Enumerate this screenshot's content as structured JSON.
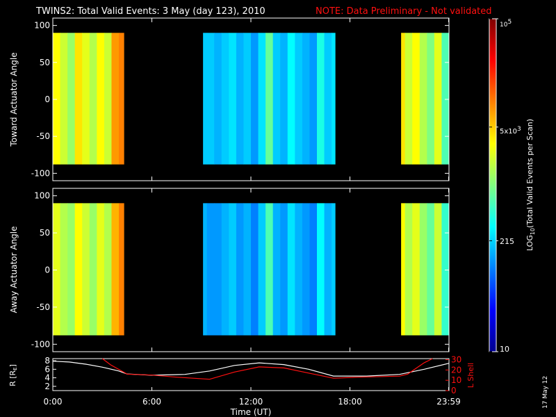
{
  "title": {
    "main": "TWINS2: Total Valid Events:  3 May (day 123), 2010",
    "note": "NOTE: Data Preliminary - Not validated"
  },
  "date_stamp": "17 May 12",
  "colors": {
    "background": "#000000",
    "foreground": "#ffffff",
    "note": "#ff1010",
    "lshell_line": "#ff1010",
    "r_line": "#ffffff"
  },
  "chart_data": [
    {
      "type": "heatmap",
      "name": "toward",
      "ylabel": "Toward Actuator Angle",
      "ylim": [
        -110,
        110
      ],
      "yticks": [
        100,
        50,
        0,
        -50,
        -100
      ],
      "angle_range": [
        -88,
        90
      ],
      "xlim": [
        0,
        24
      ],
      "data_intervals_ut_hours": [
        [
          0,
          4.3
        ],
        [
          9.1,
          17.1
        ],
        [
          21.1,
          24
        ]
      ],
      "profile_log10": [
        3.5,
        3.3,
        3.1,
        3.6,
        3.4,
        3.2,
        3.5,
        3.3,
        3.9,
        4.0,
        4.0,
        3.9,
        4.0,
        4.0,
        3.9,
        4.0,
        4.0,
        4.0,
        2.8,
        2.5,
        2.3,
        2.3,
        2.2,
        2.3,
        2.4,
        2.2,
        2.3,
        2.1,
        2.4,
        2.9,
        2.3,
        2.2,
        2.5,
        2.3,
        2.2,
        2.1,
        2.6,
        2.3,
        2.4,
        2.2,
        2.3,
        2.5,
        2.4,
        2.2,
        2.8,
        3.2,
        3.4,
        3.6,
        3.3,
        3.5,
        3.2,
        3.0,
        3.4,
        2.8
      ]
    },
    {
      "type": "heatmap",
      "name": "away",
      "ylabel": "Away Actuator Angle",
      "ylim": [
        -110,
        110
      ],
      "yticks": [
        100,
        50,
        0,
        -50,
        -100
      ],
      "angle_range": [
        -88,
        90
      ],
      "xlim": [
        0,
        24
      ],
      "data_intervals_ut_hours": [
        [
          0,
          4.3
        ],
        [
          9.1,
          17.1
        ],
        [
          21.1,
          24
        ]
      ],
      "profile_log10": [
        3.4,
        3.2,
        3.1,
        3.5,
        3.3,
        3.1,
        3.4,
        3.2,
        3.8,
        4.0,
        3.9,
        3.9,
        4.0,
        3.9,
        3.9,
        4.0,
        4.0,
        3.9,
        2.7,
        2.4,
        2.2,
        2.1,
        2.1,
        2.2,
        2.3,
        2.1,
        2.2,
        2.0,
        2.3,
        2.8,
        2.2,
        2.1,
        2.4,
        2.2,
        2.1,
        2.0,
        2.5,
        2.2,
        2.3,
        2.1,
        2.2,
        2.4,
        2.3,
        2.1,
        2.7,
        3.1,
        3.3,
        3.5,
        3.2,
        3.4,
        3.1,
        2.9,
        3.3,
        2.7
      ]
    },
    {
      "type": "line",
      "name": "orbit",
      "xlabel": "Time (UT)",
      "xlim": [
        0,
        24
      ],
      "xticks": [
        {
          "value": 0,
          "label": "0:00"
        },
        {
          "value": 6,
          "label": "6:00"
        },
        {
          "value": 12,
          "label": "12:00"
        },
        {
          "value": 18,
          "label": "18:00"
        },
        {
          "value": 23.98,
          "label": "23:59"
        }
      ],
      "ylabel": "R [R",
      "ylabel_sub": "E",
      "ylabel_close": "]",
      "ylim": [
        1,
        8.5
      ],
      "yticks": [
        2,
        4,
        6,
        8
      ],
      "ylabel_right": "L Shell",
      "ylim_right": [
        0,
        31
      ],
      "yticks_right": [
        0,
        10,
        20,
        30
      ],
      "series": [
        {
          "axis": "left",
          "x": [
            0,
            1,
            2,
            3,
            4,
            4.5,
            6,
            8,
            9.5,
            11,
            12.5,
            14,
            15.5,
            17,
            19,
            21,
            22.5,
            24
          ],
          "values": [
            7.9,
            7.7,
            7.2,
            6.5,
            5.6,
            4.9,
            4.6,
            4.8,
            5.6,
            6.9,
            7.5,
            7.1,
            6.0,
            4.4,
            4.4,
            4.8,
            6.0,
            7.4
          ]
        },
        {
          "axis": "right",
          "x": [
            3,
            3.5,
            4.5,
            6,
            7.5,
            9.5,
            11,
            12.5,
            14,
            15.5,
            17,
            18.5,
            21,
            21.5,
            22.5,
            23
          ],
          "values": [
            31,
            25,
            16,
            15,
            13,
            11,
            18,
            23,
            22,
            17,
            12,
            13,
            14,
            16,
            27,
            31
          ]
        }
      ]
    }
  ],
  "colorbar": {
    "label_prefix": "LOG",
    "label_sub": "10",
    "label_suffix": "(Total Valid Events per Scan)",
    "range_log10": [
      1,
      5
    ],
    "tick_top_base": "10",
    "tick_top_exp": "5",
    "tick_5k_pre": "5x10",
    "tick_5k_exp": "3",
    "tick_215": "215",
    "tick_10": "10",
    "tick_5k_value": 5000,
    "tick_215_value": 215
  }
}
